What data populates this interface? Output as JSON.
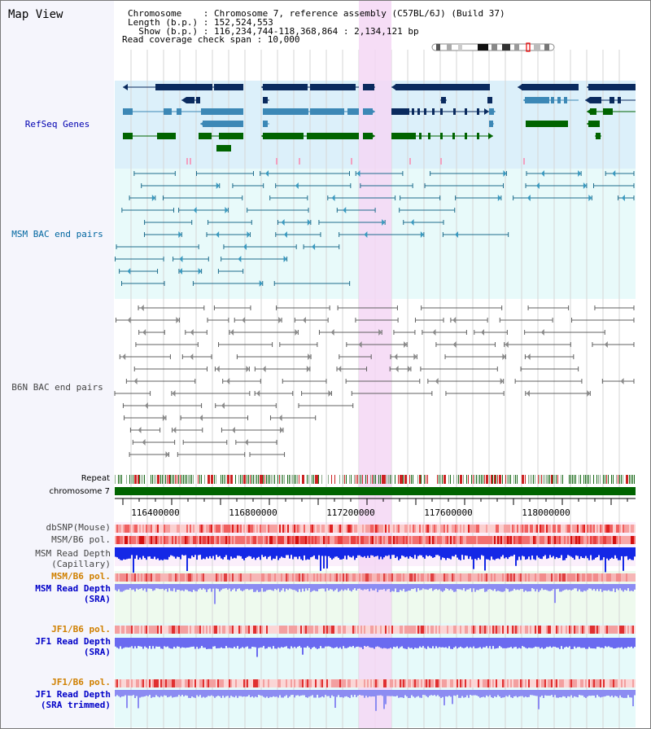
{
  "title": "Map View",
  "info": {
    "l1": "Chromosome    : Chromosome 7, reference assembly (C57BL/6J) (Build 37)",
    "l2": "Length (b.p.) : 152,524,553",
    "l3": "  Show (b.p.) : 116,234,744-118,368,864 : 2,134,121 bp",
    "l4": "Read coverage check span : 10,000"
  },
  "tracks": {
    "refseq": "RefSeq Genes",
    "msm_bac": "MSM BAC end pairs",
    "b6n_bac": "B6N BAC end pairs",
    "repeat": "Repeat",
    "chrom": "chromosome 7",
    "dbsnp": "dbSNP(Mouse)",
    "msmpol": "MSM/B6 pol.",
    "msmcap_1": "MSM Read Depth",
    "msmcap_2": "(Capillary)",
    "msmpol2": "MSM/B6 pol.",
    "msmsra_1": "MSM Read Depth",
    "msmsra_2": "(SRA)",
    "jf1pol": "JF1/B6 pol.",
    "jf1sra_1": "JF1 Read Depth",
    "jf1sra_2": "(SRA)",
    "jf1pol2": "JF1/B6 pol.",
    "jf1trim_1": "JF1 Read Depth",
    "jf1trim_2": "(SRA trimmed)"
  },
  "axis": {
    "ticks": [
      "116400000",
      "116800000",
      "117200000",
      "117600000",
      "118000000"
    ]
  },
  "colors": {
    "refseq_label": "#0000b0",
    "msm_label": "#0066a0",
    "b6n_label": "#444444",
    "pol_orange": "#d08000",
    "depth_blue": "#0000c8",
    "chrom_green": "#006400",
    "highlight": "#f5d7f5"
  }
}
